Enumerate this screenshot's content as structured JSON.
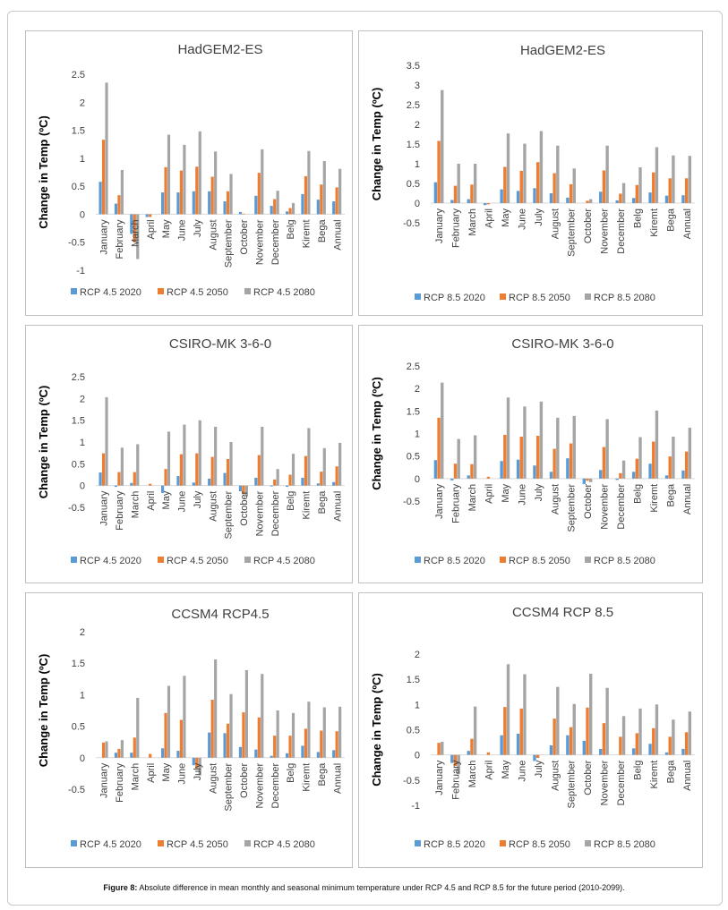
{
  "caption": {
    "label": "Figure 8:",
    "text": "Absolute difference in mean monthly and seasonal minimum temperature under RCP 4.5 and RCP 8.5 for the future period (2010-2099)."
  },
  "colors": {
    "s2020": "#5b9bd5",
    "s2050": "#ed7d31",
    "s2080": "#a5a5a5"
  },
  "chart_data": [
    {
      "type": "bar",
      "title": "HadGEM2-ES",
      "ylabel": "Change in Temp (ºC)",
      "xlabel": "",
      "ylim": [
        -1,
        2.5
      ],
      "yticks": [
        "-1",
        "-0.5",
        "0",
        "0.5",
        "1",
        "1.5",
        "2",
        "2.5"
      ],
      "ytick_values": [
        -1,
        -0.5,
        0,
        0.5,
        1,
        1.5,
        2,
        2.5
      ],
      "legend_position": "bottom",
      "categories": [
        "January",
        "February",
        "March",
        "April",
        "May",
        "June",
        "July",
        "August",
        "September",
        "October",
        "November",
        "December",
        "Belg",
        "Kiremt",
        "Bega",
        "Annual"
      ],
      "series": [
        {
          "name": "RCP 4.5 2020",
          "values": [
            0.58,
            0.19,
            -0.35,
            -0.05,
            0.39,
            0.39,
            0.41,
            0.41,
            0.23,
            0.04,
            0.33,
            0.15,
            0.05,
            0.36,
            0.26,
            0.23
          ]
        },
        {
          "name": "RCP 4.5 2050",
          "values": [
            1.33,
            0.34,
            -0.5,
            -0.05,
            0.84,
            0.78,
            0.85,
            0.67,
            0.41,
            0.01,
            0.74,
            0.27,
            0.11,
            0.68,
            0.53,
            0.48
          ]
        },
        {
          "name": "RCP 4.5 2080",
          "values": [
            2.35,
            0.79,
            -0.8,
            0.0,
            1.42,
            1.24,
            1.48,
            1.12,
            0.72,
            0.0,
            1.16,
            0.42,
            0.2,
            1.13,
            0.95,
            0.81
          ]
        }
      ]
    },
    {
      "type": "bar",
      "title": "HadGEM2-ES",
      "ylabel": "Change in Temp (ºC)",
      "xlabel": "",
      "ylim": [
        -0.5,
        3.5
      ],
      "yticks": [
        "-0.5",
        "0",
        "0.5",
        "1",
        "1.5",
        "2",
        "2.5",
        "3",
        "3.5"
      ],
      "ytick_values": [
        -0.5,
        0,
        0.5,
        1,
        1.5,
        2,
        2.5,
        3,
        3.5
      ],
      "legend_position": "bottom",
      "categories": [
        "January",
        "February",
        "March",
        "April",
        "May",
        "June",
        "July",
        "August",
        "September",
        "October",
        "November",
        "December",
        "Belg",
        "Kiremt",
        "Bega",
        "Annual"
      ],
      "series": [
        {
          "name": "RCP 8.5 2020",
          "values": [
            0.53,
            0.08,
            0.1,
            -0.05,
            0.35,
            0.31,
            0.38,
            0.25,
            0.14,
            0.0,
            0.29,
            0.07,
            0.13,
            0.27,
            0.19,
            0.2
          ]
        },
        {
          "name": "RCP 8.5 2050",
          "values": [
            1.58,
            0.44,
            0.47,
            -0.03,
            0.92,
            0.82,
            1.04,
            0.76,
            0.48,
            0.06,
            0.83,
            0.24,
            0.46,
            0.78,
            0.63,
            0.63
          ]
        },
        {
          "name": "RCP 8.5 2080",
          "values": [
            2.87,
            1.0,
            1.0,
            0.0,
            1.77,
            1.51,
            1.83,
            1.46,
            0.88,
            0.1,
            1.46,
            0.51,
            0.91,
            1.42,
            1.21,
            1.2
          ]
        }
      ]
    },
    {
      "type": "bar",
      "title": "CSIRO-MK 3-6-0",
      "ylabel": "Change in Temp (ºC)",
      "xlabel": "",
      "ylim": [
        -0.5,
        2.5
      ],
      "yticks": [
        "-0.5",
        "0",
        "0.5",
        "1",
        "1.5",
        "2",
        "2.5"
      ],
      "ytick_values": [
        -0.5,
        0,
        0.5,
        1,
        1.5,
        2,
        2.5
      ],
      "legend_position": "bottom",
      "categories": [
        "January",
        "February",
        "March",
        "April",
        "May",
        "June",
        "July",
        "August",
        "September",
        "October",
        "November",
        "December",
        "Belg",
        "Kiremt",
        "Bega",
        "Annual"
      ],
      "series": [
        {
          "name": "RCP 4.5 2020",
          "values": [
            0.3,
            -0.03,
            0.06,
            0.0,
            -0.17,
            0.22,
            0.07,
            0.16,
            0.29,
            -0.13,
            0.18,
            -0.02,
            -0.03,
            0.18,
            0.05,
            0.08
          ]
        },
        {
          "name": "RCP 4.5 2050",
          "values": [
            0.74,
            0.31,
            0.31,
            0.04,
            0.38,
            0.72,
            0.74,
            0.66,
            0.61,
            -0.2,
            0.7,
            0.14,
            0.25,
            0.68,
            0.32,
            0.44
          ]
        },
        {
          "name": "RCP 4.5 2080",
          "values": [
            2.03,
            0.87,
            0.95,
            0.0,
            1.24,
            1.4,
            1.5,
            1.35,
            1.0,
            -0.25,
            1.35,
            0.38,
            0.73,
            1.32,
            0.86,
            0.98
          ]
        }
      ]
    },
    {
      "type": "bar",
      "title": "CSIRO-MK 3-6-0",
      "ylabel": "Change in Temp (ºC)",
      "xlabel": "",
      "ylim": [
        -0.5,
        2.5
      ],
      "yticks": [
        "-0.5",
        "0",
        "0.5",
        "1",
        "1.5",
        "2",
        "2.5"
      ],
      "ytick_values": [
        -0.5,
        0,
        0.5,
        1,
        1.5,
        2,
        2.5
      ],
      "legend_position": "bottom",
      "categories": [
        "January",
        "February",
        "March",
        "April",
        "May",
        "June",
        "July",
        "August",
        "September",
        "October",
        "November",
        "December",
        "Belg",
        "Kiremt",
        "Bega",
        "Annual"
      ],
      "series": [
        {
          "name": "RCP 8.5 2020",
          "values": [
            0.41,
            -0.04,
            0.07,
            0.0,
            0.39,
            0.42,
            0.29,
            0.15,
            0.45,
            -0.12,
            0.19,
            -0.03,
            0.15,
            0.33,
            0.07,
            0.18
          ]
        },
        {
          "name": "RCP 8.5 2050",
          "values": [
            1.35,
            0.33,
            0.32,
            0.04,
            0.97,
            0.93,
            0.95,
            0.66,
            0.78,
            -0.05,
            0.7,
            0.12,
            0.44,
            0.82,
            0.49,
            0.6
          ]
        },
        {
          "name": "RCP 8.5 2080",
          "values": [
            2.13,
            0.88,
            0.96,
            0.0,
            1.8,
            1.6,
            1.71,
            1.35,
            1.39,
            -0.08,
            1.32,
            0.4,
            0.92,
            1.51,
            0.93,
            1.13
          ]
        }
      ]
    },
    {
      "type": "bar",
      "title": "CCSM4 RCP4.5",
      "ylabel": "Change in Temp (ºC)",
      "xlabel": "",
      "ylim": [
        -0.5,
        2
      ],
      "yticks": [
        "-0.5",
        "0",
        "0.5",
        "1",
        "1.5",
        "2"
      ],
      "ytick_values": [
        -0.5,
        0,
        0.5,
        1,
        1.5,
        2
      ],
      "legend_position": "bottom",
      "categories": [
        "January",
        "February",
        "March",
        "April",
        "May",
        "June",
        "July",
        "August",
        "September",
        "October",
        "November",
        "December",
        "Belg",
        "Kiremt",
        "Bega",
        "Annual"
      ],
      "series": [
        {
          "name": "RCP 4.5 2020",
          "values": [
            0.0,
            0.08,
            0.08,
            0.0,
            0.15,
            0.11,
            -0.12,
            0.4,
            0.39,
            0.17,
            0.13,
            0.03,
            0.07,
            0.19,
            0.09,
            0.12
          ]
        },
        {
          "name": "RCP 4.5 2050",
          "values": [
            0.24,
            0.14,
            0.32,
            0.06,
            0.71,
            0.6,
            -0.17,
            0.92,
            0.54,
            0.72,
            0.64,
            0.35,
            0.35,
            0.46,
            0.43,
            0.42
          ]
        },
        {
          "name": "RCP 4.5 2080",
          "values": [
            0.26,
            0.28,
            0.95,
            0.0,
            1.14,
            1.3,
            -0.28,
            1.56,
            1.01,
            1.39,
            1.33,
            0.75,
            0.71,
            0.89,
            0.8,
            0.81
          ]
        }
      ]
    },
    {
      "type": "bar",
      "title": "CCSM4 RCP 8.5",
      "ylabel": "Change in Temp (ºC)",
      "xlabel": "",
      "ylim": [
        -1,
        2
      ],
      "yticks": [
        "-1",
        "-0.5",
        "0",
        "0.5",
        "1",
        "1.5",
        "2"
      ],
      "ytick_values": [
        -1,
        -0.5,
        0,
        0.5,
        1,
        1.5,
        2
      ],
      "legend_position": "bottom",
      "categories": [
        "January",
        "February",
        "March",
        "April",
        "May",
        "June",
        "July",
        "August",
        "September",
        "October",
        "November",
        "December",
        "Belg",
        "Kiremt",
        "Bega",
        "Annual"
      ],
      "series": [
        {
          "name": "RCP 8.5 2020",
          "values": [
            0.0,
            -0.16,
            0.08,
            0.0,
            0.39,
            0.42,
            -0.12,
            0.19,
            0.39,
            0.28,
            0.12,
            0.0,
            0.13,
            0.22,
            0.05,
            0.12
          ]
        },
        {
          "name": "RCP 8.5 2050",
          "values": [
            0.24,
            -0.22,
            0.32,
            0.05,
            0.95,
            0.92,
            -0.06,
            0.72,
            0.55,
            0.94,
            0.63,
            0.36,
            0.43,
            0.53,
            0.36,
            0.45
          ]
        },
        {
          "name": "RCP 8.5 2080",
          "values": [
            0.26,
            -0.38,
            0.96,
            0.0,
            1.8,
            1.6,
            0.0,
            1.35,
            1.01,
            1.61,
            1.33,
            0.77,
            0.92,
            1.0,
            0.7,
            0.86
          ]
        }
      ]
    }
  ]
}
